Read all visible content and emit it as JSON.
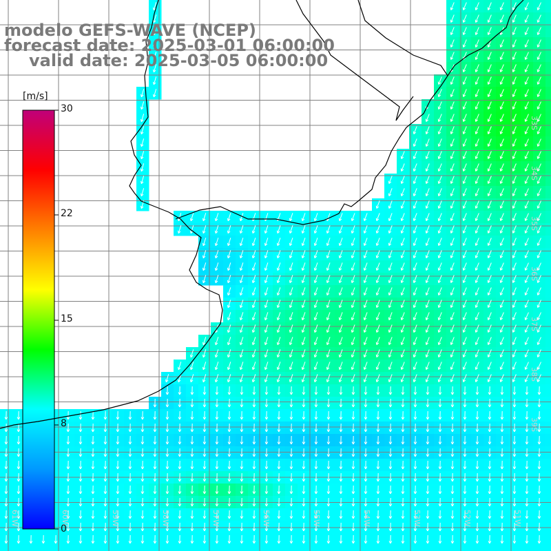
{
  "title": {
    "line1": "modelo GEFS-WAVE (NCEP)",
    "line2": "forecast date: 2025-03-01 06:00:00",
    "line3": "valid date: 2025-03-05 06:00:00"
  },
  "colorbar": {
    "unit": "[m/s]",
    "ticks": [
      "30",
      "22",
      "15",
      "8",
      "0"
    ],
    "tick_values": [
      30,
      22,
      15,
      8,
      0
    ],
    "min": 0,
    "max": 30,
    "colors": [
      "#0000ff",
      "#0099ff",
      "#00ffff",
      "#00ff00",
      "#ffff00",
      "#ff8000",
      "#ff0000",
      "#c0007a"
    ]
  },
  "map": {
    "longitude_labels": [
      "61W",
      "60W",
      "59W",
      "58W",
      "57W",
      "56W",
      "55W",
      "54W",
      "53W",
      "52W",
      "51W"
    ],
    "latitude_labels": [
      "33S",
      "34S",
      "35S",
      "36S",
      "37S",
      "38S",
      "39S"
    ],
    "land_color": "#ffffff",
    "coast_color": "#000000",
    "grid_color": "#808080",
    "arrow_color": "#ffffff"
  }
}
